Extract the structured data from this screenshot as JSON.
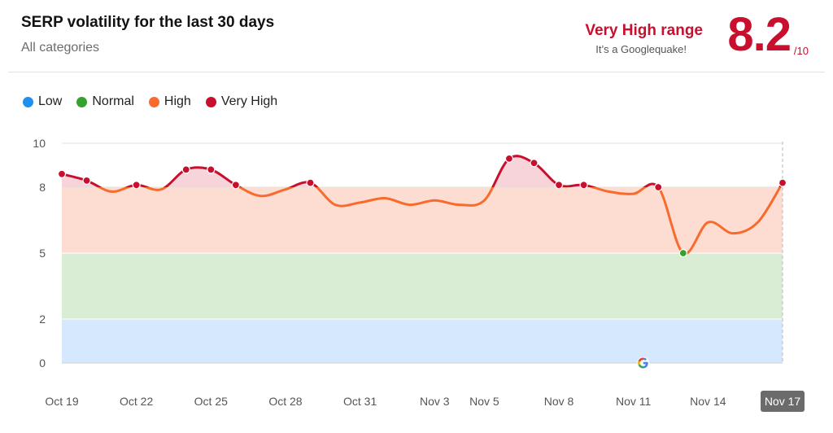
{
  "header": {
    "title": "SERP volatility for the last 30 days",
    "subtitle": "All categories",
    "range_label": "Very High range",
    "range_note": "It’s a Googlequake!",
    "score": "8.2",
    "score_max": "/10"
  },
  "legend": [
    {
      "label": "Low",
      "color": "#1e90f0"
    },
    {
      "label": "Normal",
      "color": "#35a12e"
    },
    {
      "label": "High",
      "color": "#f96b2c"
    },
    {
      "label": "Very High",
      "color": "#c8102e"
    }
  ],
  "colors": {
    "low_band": "#d6e8fd",
    "normal_band": "#d8edd4",
    "high_band": "#fdddd2",
    "very_high_band": "#f7d4da",
    "line_high": "#f96b2c",
    "line_very_high": "#c8102e",
    "dot_normal": "#35a12e",
    "dot_very_high": "#c8102e"
  },
  "chart_data": {
    "type": "line",
    "title": "SERP volatility for the last 30 days",
    "xlabel": "",
    "ylabel": "",
    "ylim": [
      0,
      10
    ],
    "yticks": [
      0,
      2,
      5,
      8,
      10
    ],
    "bands": [
      {
        "label": "Low",
        "from": 0,
        "to": 2
      },
      {
        "label": "Normal",
        "from": 2,
        "to": 5
      },
      {
        "label": "High",
        "from": 5,
        "to": 8
      },
      {
        "label": "Very High",
        "from": 8,
        "to": 10
      }
    ],
    "x": [
      "Oct 19",
      "Oct 20",
      "Oct 21",
      "Oct 22",
      "Oct 23",
      "Oct 24",
      "Oct 25",
      "Oct 26",
      "Oct 27",
      "Oct 28",
      "Oct 29",
      "Oct 30",
      "Oct 31",
      "Nov 1",
      "Nov 2",
      "Nov 3",
      "Nov 4",
      "Nov 5",
      "Nov 6",
      "Nov 7",
      "Nov 8",
      "Nov 9",
      "Nov 10",
      "Nov 11",
      "Nov 12",
      "Nov 13",
      "Nov 14",
      "Nov 15",
      "Nov 16",
      "Nov 17"
    ],
    "x_tick_labels": [
      "Oct 19",
      "Oct 22",
      "Oct 25",
      "Oct 28",
      "Oct 31",
      "Nov 3",
      "Nov 5",
      "Nov 8",
      "Nov 11",
      "Nov 14",
      "Nov 17"
    ],
    "highlighted_tick": "Nov 17",
    "series": [
      {
        "values": [
          8.6,
          8.3,
          7.8,
          8.1,
          7.9,
          8.8,
          8.8,
          8.1,
          7.6,
          7.9,
          8.2,
          7.2,
          7.3,
          7.5,
          7.2,
          7.4,
          7.2,
          7.4,
          9.3,
          9.1,
          8.1,
          8.1,
          7.8,
          7.7,
          8.0,
          5.0,
          6.4,
          5.9,
          6.4,
          8.2
        ]
      }
    ],
    "annotation_marker": {
      "x": "Nov 11",
      "icon": "google-g-icon"
    }
  }
}
